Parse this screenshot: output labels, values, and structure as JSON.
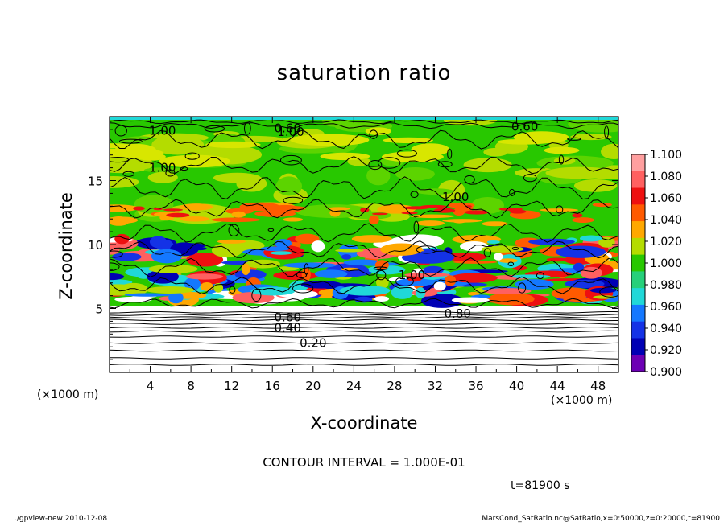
{
  "chart_data": {
    "type": "heatmap",
    "title": "saturation ratio",
    "xlabel": "X-coordinate",
    "ylabel": "Z-coordinate",
    "x_unit_label": "(×1000 m)",
    "x_ticks": [
      4,
      8,
      12,
      16,
      20,
      24,
      28,
      32,
      36,
      40,
      44,
      48
    ],
    "y_ticks": [
      5,
      10,
      15
    ],
    "xlim": [
      0,
      50
    ],
    "ylim": [
      0,
      20
    ],
    "colorbar": {
      "ticks": [
        "1.100",
        "1.080",
        "1.060",
        "1.040",
        "1.020",
        "1.000",
        "0.980",
        "0.960",
        "0.940",
        "0.920",
        "0.900"
      ],
      "range": [
        0.9,
        1.1
      ],
      "colors": [
        "#ff9f9f",
        "#ff6060",
        "#ee1010",
        "#ff5a00",
        "#ffa800",
        "#b4dc00",
        "#28c800",
        "#26d07a",
        "#20d8d8",
        "#1478ff",
        "#1432e6",
        "#0000b4",
        "#6c00b4"
      ]
    },
    "contour_labels": [
      {
        "text": "0.20",
        "x": 20,
        "z": 2.3
      },
      {
        "text": "0.40",
        "x": 17.5,
        "z": 3.5
      },
      {
        "text": "0.60",
        "x": 17.5,
        "z": 4.3
      },
      {
        "text": "0.60",
        "x": 17.5,
        "z": 19.1
      },
      {
        "text": "0.60",
        "x": 40.8,
        "z": 19.2
      },
      {
        "text": "0.80",
        "x": 34.2,
        "z": 4.6
      },
      {
        "text": "1.00",
        "x": 5.2,
        "z": 18.9
      },
      {
        "text": "1.00",
        "x": 5.2,
        "z": 16.0
      },
      {
        "text": "1.00",
        "x": 17.8,
        "z": 18.8
      },
      {
        "text": "1.00",
        "x": 34.0,
        "z": 13.7
      },
      {
        "text": "1.00",
        "x": 29.7,
        "z": 7.6
      }
    ],
    "interval_text": "CONTOUR INTERVAL = 1.000E-01",
    "time_text": "t=81900 s"
  },
  "footer": {
    "left": "./gpview-new   2010-12-08",
    "right": "MarsCond_SatRatio.nc@SatRatio,x=0:50000,z=0:20000,t=81900"
  }
}
